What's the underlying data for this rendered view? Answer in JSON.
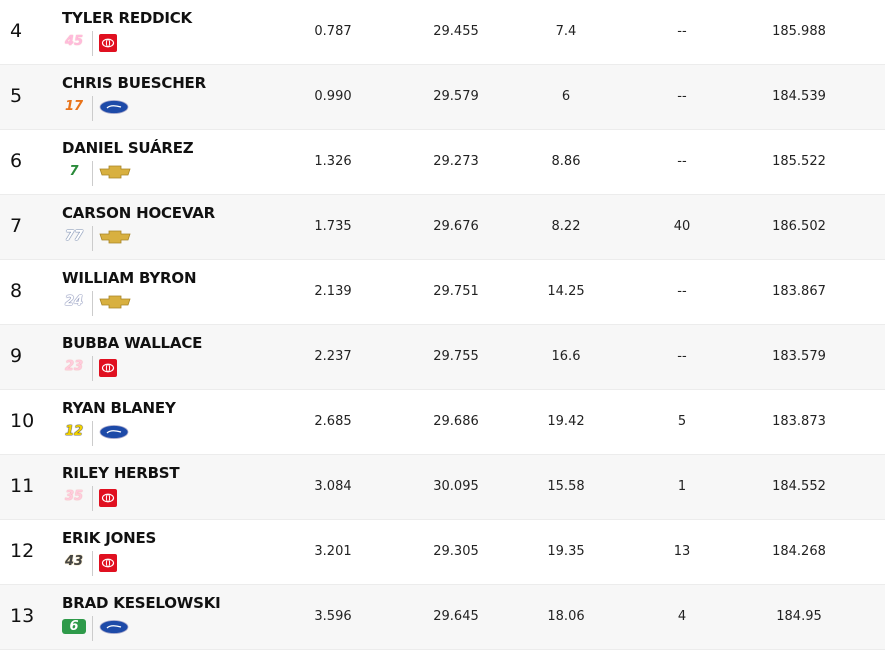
{
  "table": {
    "rows": [
      {
        "position": "4",
        "driver": "TYLER REDDICK",
        "number": "45",
        "cells": [
          "0.787",
          "29.455",
          "7.4",
          "--",
          "185.988"
        ]
      },
      {
        "position": "5",
        "driver": "CHRIS BUESCHER",
        "number": "17",
        "cells": [
          "0.990",
          "29.579",
          "6",
          "--",
          "184.539"
        ]
      },
      {
        "position": "6",
        "driver": "DANIEL SUÁREZ",
        "number": "7",
        "cells": [
          "1.326",
          "29.273",
          "8.86",
          "--",
          "185.522"
        ]
      },
      {
        "position": "7",
        "driver": "CARSON HOCEVAR",
        "number": "77",
        "cells": [
          "1.735",
          "29.676",
          "8.22",
          "40",
          "186.502"
        ]
      },
      {
        "position": "8",
        "driver": "WILLIAM BYRON",
        "number": "24",
        "cells": [
          "2.139",
          "29.751",
          "14.25",
          "--",
          "183.867"
        ]
      },
      {
        "position": "9",
        "driver": "BUBBA WALLACE",
        "number": "23",
        "cells": [
          "2.237",
          "29.755",
          "16.6",
          "--",
          "183.579"
        ]
      },
      {
        "position": "10",
        "driver": "RYAN BLANEY",
        "number": "12",
        "cells": [
          "2.685",
          "29.686",
          "19.42",
          "5",
          "183.873"
        ]
      },
      {
        "position": "11",
        "driver": "RILEY HERBST",
        "number": "35",
        "cells": [
          "3.084",
          "30.095",
          "15.58",
          "1",
          "184.552"
        ]
      },
      {
        "position": "12",
        "driver": "ERIK JONES",
        "number": "43",
        "cells": [
          "3.201",
          "29.305",
          "19.35",
          "13",
          "184.268"
        ]
      },
      {
        "position": "13",
        "driver": "BRAD KESELOWSKI",
        "number": "6",
        "cells": [
          "3.596",
          "29.645",
          "18.06",
          "4",
          "184.95"
        ]
      }
    ]
  }
}
